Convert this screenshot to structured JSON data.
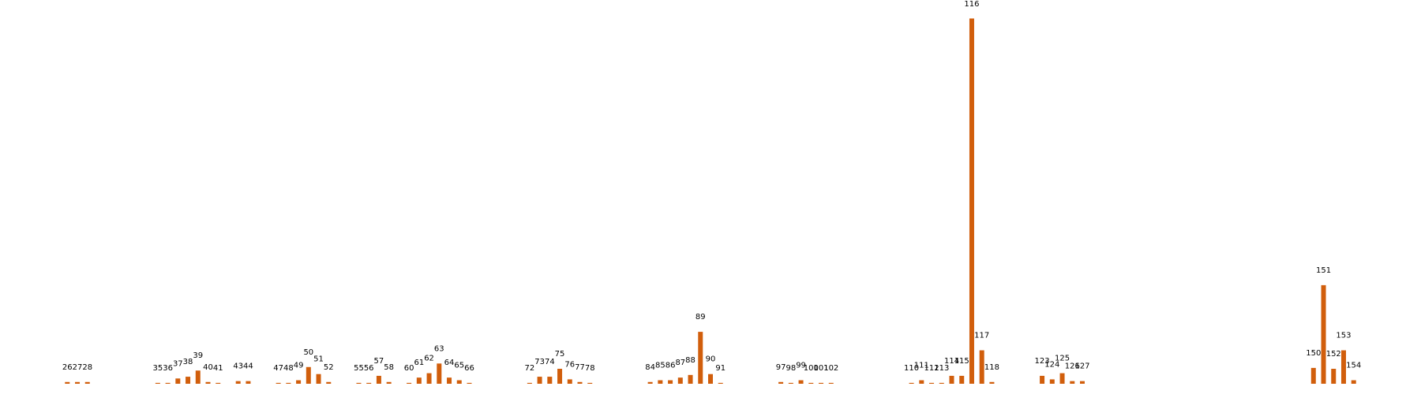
{
  "chart_data": {
    "type": "bar",
    "color": "#d15e0c",
    "x": [
      26,
      27,
      28,
      35,
      36,
      37,
      38,
      39,
      40,
      41,
      43,
      44,
      47,
      48,
      49,
      50,
      51,
      52,
      55,
      56,
      57,
      58,
      60,
      61,
      62,
      63,
      64,
      65,
      66,
      72,
      73,
      74,
      75,
      76,
      77,
      78,
      84,
      85,
      86,
      87,
      88,
      89,
      90,
      91,
      97,
      98,
      99,
      100,
      101,
      102,
      110,
      111,
      112,
      113,
      114,
      115,
      116,
      117,
      118,
      123,
      124,
      125,
      126,
      127,
      150,
      151,
      152,
      153,
      154
    ],
    "values": [
      2,
      2,
      2,
      1,
      1,
      6,
      8,
      15,
      2,
      1,
      3,
      3,
      1,
      1,
      4,
      19,
      11,
      2,
      1,
      1,
      9,
      2,
      1,
      7,
      12,
      23,
      7,
      4,
      1,
      1,
      8,
      8,
      17,
      5,
      2,
      1,
      2,
      4,
      4,
      7,
      10,
      59,
      11,
      1,
      2,
      1,
      4,
      1,
      1,
      1,
      1,
      4,
      1,
      1,
      9,
      9,
      415,
      38,
      2,
      9,
      5,
      12,
      3,
      3,
      18,
      112,
      17,
      38,
      4
    ],
    "xlim": [
      19.3,
      160.7
    ],
    "ylim": [
      0,
      436
    ]
  }
}
